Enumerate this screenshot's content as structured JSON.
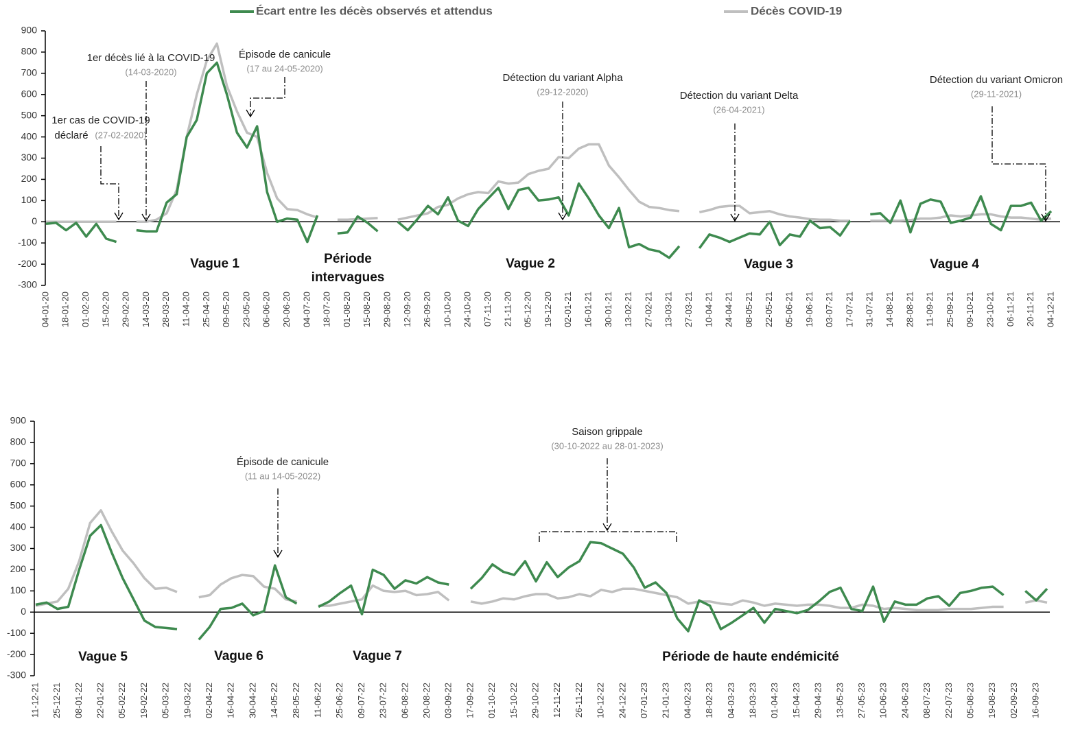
{
  "chart_data": [
    {
      "type": "line",
      "categories": [
        "04-01-20",
        null,
        "18-01-20",
        null,
        "01-02-20",
        null,
        "15-02-20",
        null,
        "29-02-20",
        null,
        "14-03-20",
        null,
        "28-03-20",
        null,
        "11-04-20",
        null,
        "25-04-20",
        null,
        "09-05-20",
        null,
        "23-05-20",
        null,
        "06-06-20",
        null,
        "20-06-20",
        null,
        "04-07-20",
        null,
        "18-07-20",
        null,
        "01-08-20",
        null,
        "15-08-20",
        null,
        "29-08-20",
        null,
        "12-09-20",
        null,
        "26-09-20",
        null,
        "10-10-20",
        null,
        "24-10-20",
        null,
        "07-11-20",
        null,
        "21-11-20",
        null,
        "05-12-20",
        null,
        "19-12-20",
        null,
        "02-01-21",
        null,
        "16-01-21",
        null,
        "30-01-21",
        null,
        "13-02-21",
        null,
        "27-02-21",
        null,
        "13-03-21",
        null,
        "27-03-21",
        null,
        "10-04-21",
        null,
        "24-04-21",
        null,
        "08-05-21",
        null,
        "22-05-21",
        null,
        "05-06-21",
        null,
        "19-06-21",
        null,
        "03-07-21",
        null,
        "17-07-21",
        null,
        "31-07-21",
        null,
        "14-08-21",
        null,
        "28-08-21",
        null,
        "11-09-21",
        null,
        "25-09-21",
        null,
        "09-10-21",
        null,
        "23-10-21",
        null,
        "06-11-21",
        null,
        "20-11-21",
        null,
        "04-12-21"
      ],
      "series": [
        {
          "name": "Écart entre les décès observés et attendus",
          "color": "#3e8a4f",
          "values": [
            -10,
            -5,
            -40,
            -5,
            -70,
            -10,
            -80,
            -95,
            null,
            -40,
            -45,
            -45,
            90,
            130,
            400,
            480,
            700,
            750,
            600,
            420,
            350,
            450,
            140,
            0,
            15,
            10,
            -95,
            30,
            null,
            -55,
            -50,
            25,
            -5,
            -45,
            null,
            0,
            -40,
            15,
            75,
            35,
            115,
            5,
            -20,
            60,
            110,
            160,
            60,
            150,
            160,
            100,
            105,
            115,
            30,
            180,
            110,
            30,
            -30,
            65,
            -120,
            -105,
            -130,
            -140,
            -170,
            -115,
            null,
            -125,
            -60,
            -75,
            -95,
            -75,
            -55,
            -60,
            0,
            -110,
            -60,
            -70,
            5,
            -30,
            -25,
            -65,
            5,
            null,
            35,
            40,
            -5,
            100,
            -50,
            85,
            105,
            95,
            -5,
            5,
            20,
            120,
            -10,
            -40,
            75,
            75,
            90,
            5,
            50
          ]
        },
        {
          "name": "Décès COVID-19",
          "color": "#bfbfbf",
          "values": [
            0,
            0,
            0,
            0,
            0,
            0,
            0,
            0,
            null,
            0,
            0,
            10,
            40,
            150,
            400,
            600,
            760,
            840,
            640,
            520,
            420,
            400,
            230,
            110,
            60,
            55,
            35,
            20,
            null,
            10,
            10,
            12,
            15,
            18,
            null,
            10,
            20,
            30,
            40,
            70,
            80,
            110,
            130,
            140,
            135,
            190,
            180,
            185,
            225,
            240,
            250,
            305,
            300,
            345,
            365,
            365,
            265,
            210,
            150,
            95,
            70,
            65,
            55,
            50,
            null,
            45,
            55,
            70,
            75,
            75,
            40,
            45,
            50,
            35,
            25,
            20,
            12,
            10,
            10,
            5,
            5,
            null,
            5,
            5,
            5,
            5,
            8,
            15,
            15,
            20,
            30,
            25,
            30,
            35,
            35,
            25,
            20,
            20,
            15,
            10,
            15
          ]
        }
      ],
      "ylim": [
        -300,
        900
      ],
      "yticks": [
        -300,
        -200,
        -100,
        0,
        100,
        200,
        300,
        400,
        500,
        600,
        700,
        800,
        900
      ],
      "annotations": [
        {
          "lines": [
            "1er cas de COVID-19",
            "déclaré"
          ],
          "date": "(27-02-2020)"
        },
        {
          "lines": [
            "1er décès lié à la COVID-19"
          ],
          "date": "(14-03-2020)"
        },
        {
          "lines": [
            "Épisode de canicule"
          ],
          "date": "(17 au 24-05-2020)"
        },
        {
          "lines": [
            "Détection du variant Alpha"
          ],
          "date": "(29-12-2020)"
        },
        {
          "lines": [
            "Détection du variant Delta"
          ],
          "date": "(26-04-2021)"
        },
        {
          "lines": [
            "Détection du variant Omicron"
          ],
          "date": "(29-11-2021)"
        }
      ],
      "periods": [
        [
          "Vague 1"
        ],
        [
          "Période",
          "intervagues"
        ],
        [
          "Vague 2"
        ],
        [
          "Vague 3"
        ],
        [
          "Vague 4"
        ]
      ]
    },
    {
      "type": "line",
      "categories": [
        "11-12-21",
        null,
        "25-12-21",
        null,
        "08-01-22",
        null,
        "22-01-22",
        null,
        "05-02-22",
        null,
        "19-02-22",
        null,
        "05-03-22",
        null,
        "19-03-22",
        null,
        "02-04-22",
        null,
        "16-04-22",
        null,
        "30-04-22",
        null,
        "14-05-22",
        null,
        "28-05-22",
        null,
        "11-06-22",
        null,
        "25-06-22",
        null,
        "09-07-22",
        null,
        "23-07-22",
        null,
        "06-08-22",
        null,
        "20-08-22",
        null,
        "03-09-22",
        null,
        "17-09-22",
        null,
        "01-10-22",
        null,
        "15-10-22",
        null,
        "29-10-22",
        null,
        "12-11-22",
        null,
        "26-11-22",
        null,
        "10-12-22",
        null,
        "24-12-22",
        null,
        "07-01-23",
        null,
        "21-01-23",
        null,
        "04-02-23",
        null,
        "18-02-23",
        null,
        "04-03-23",
        null,
        "18-03-23",
        null,
        "01-04-23",
        null,
        "15-04-23",
        null,
        "29-04-23",
        null,
        "13-05-23",
        null,
        "27-05-23",
        null,
        "10-06-23",
        null,
        "24-06-23",
        null,
        "08-07-23",
        null,
        "22-07-23",
        null,
        "05-08-23",
        null,
        "19-08-23",
        null,
        "02-09-23",
        null,
        "16-09-23",
        null
      ],
      "series": [
        {
          "color": "#3e8a4f",
          "values": [
            35,
            45,
            15,
            25,
            200,
            360,
            410,
            280,
            160,
            60,
            -40,
            -70,
            -75,
            -80,
            null,
            -130,
            -70,
            15,
            20,
            40,
            -15,
            5,
            220,
            70,
            40,
            null,
            25,
            50,
            90,
            125,
            -10,
            200,
            175,
            110,
            150,
            135,
            165,
            140,
            130,
            null,
            110,
            160,
            225,
            190,
            175,
            240,
            145,
            235,
            165,
            210,
            240,
            330,
            325,
            300,
            275,
            210,
            115,
            140,
            90,
            -30,
            -90,
            55,
            30,
            -80,
            -50,
            -15,
            20,
            -50,
            15,
            5,
            -5,
            10,
            50,
            95,
            115,
            15,
            5,
            120,
            -45,
            50,
            35,
            35,
            65,
            75,
            30,
            90,
            100,
            115,
            120,
            80,
            null,
            100,
            55,
            110
          ]
        },
        {
          "color": "#bfbfbf",
          "values": [
            30,
            40,
            50,
            110,
            240,
            420,
            480,
            380,
            290,
            230,
            160,
            110,
            115,
            95,
            null,
            70,
            80,
            130,
            160,
            175,
            170,
            120,
            110,
            60,
            50,
            null,
            30,
            30,
            40,
            50,
            60,
            125,
            100,
            95,
            100,
            80,
            85,
            95,
            55,
            null,
            50,
            40,
            50,
            65,
            60,
            75,
            85,
            85,
            65,
            70,
            85,
            75,
            105,
            95,
            110,
            110,
            100,
            90,
            80,
            70,
            40,
            50,
            50,
            40,
            35,
            55,
            45,
            30,
            40,
            35,
            30,
            35,
            35,
            30,
            20,
            20,
            35,
            30,
            15,
            20,
            15,
            10,
            10,
            10,
            15,
            15,
            15,
            20,
            25,
            25,
            null,
            45,
            55,
            45
          ]
        }
      ],
      "ylim": [
        -300,
        900
      ],
      "yticks": [
        -300,
        -200,
        -100,
        0,
        100,
        200,
        300,
        400,
        500,
        600,
        700,
        800,
        900
      ],
      "annotations": [
        {
          "lines": [
            "Épisode de canicule"
          ],
          "date": "(11 au 14-05-2022)"
        },
        {
          "lines": [
            "Saison grippale"
          ],
          "date": "(30-10-2022 au 28-01-2023)"
        }
      ],
      "periods": [
        [
          "Vague 5"
        ],
        [
          "Vague 6"
        ],
        [
          "Vague 7"
        ],
        [
          "Période de haute endémicité"
        ]
      ]
    }
  ]
}
